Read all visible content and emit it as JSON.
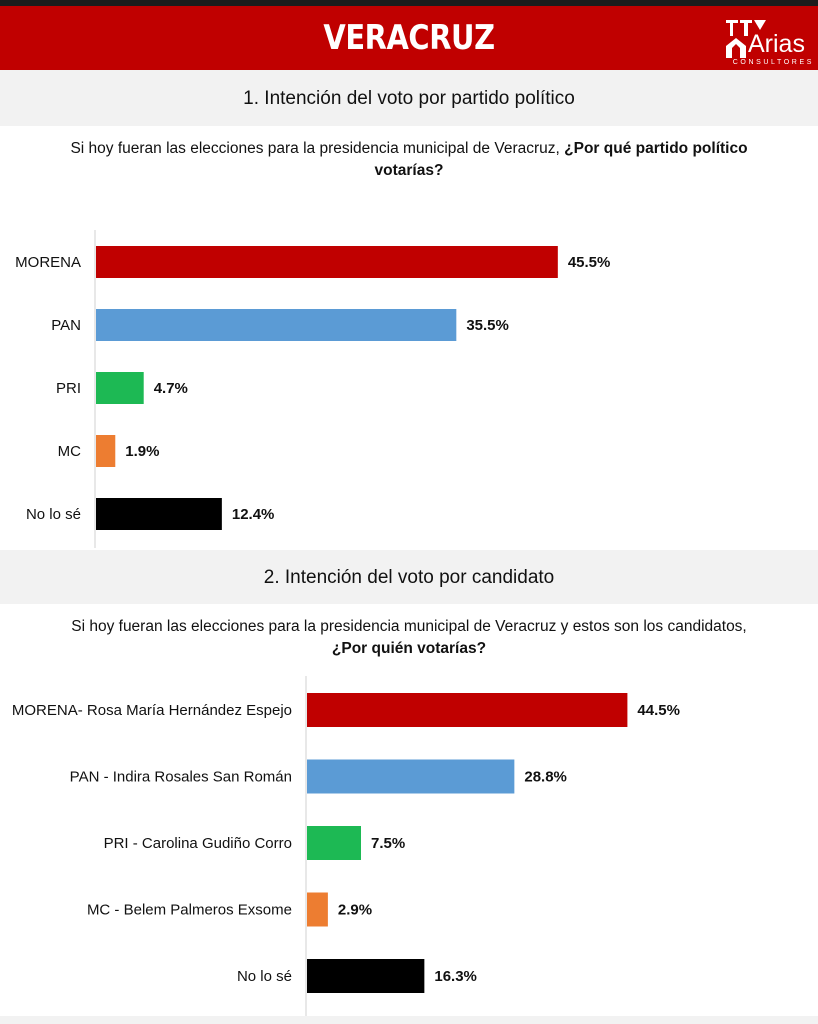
{
  "header": {
    "title": "VERACRUZ",
    "brand_color": "#c00000",
    "logo": {
      "name": "Arias",
      "sub": "CONSULTORES"
    }
  },
  "sections": [
    {
      "heading": "1. Intención del voto por partido político",
      "question_normal": "Si hoy fueran las elecciones para la presidencia municipal de Veracruz, ",
      "question_bold": "¿Por qué partido político votarías?"
    },
    {
      "heading": "2. Intención del voto por candidato",
      "question_normal": "Si hoy fueran las elecciones para la presidencia municipal de Veracruz y estos son los candidatos, ",
      "question_bold": "¿Por quién votarías?"
    }
  ],
  "chart_data": [
    {
      "type": "bar",
      "orientation": "horizontal",
      "categories": [
        "MORENA",
        "PAN",
        "PRI",
        "MC",
        "No lo sé"
      ],
      "values": [
        45.5,
        35.5,
        4.7,
        1.9,
        12.4
      ],
      "value_labels": [
        "45.5%",
        "35.5%",
        "4.7%",
        "1.9%",
        "12.4%"
      ],
      "colors": [
        "#c00000",
        "#5b9bd5",
        "#1db954",
        "#ed7d31",
        "#000000"
      ],
      "xlim": [
        0,
        50
      ],
      "grid": false,
      "legend": "none"
    },
    {
      "type": "bar",
      "orientation": "horizontal",
      "categories": [
        "MORENA- Rosa María Hernández Espejo",
        "PAN - Indira Rosales San Román",
        "PRI - Carolina Gudiño Corro",
        "MC - Belem Palmeros Exsome",
        "No lo sé"
      ],
      "values": [
        44.5,
        28.8,
        7.5,
        2.9,
        16.3
      ],
      "value_labels": [
        "44.5%",
        "28.8%",
        "7.5%",
        "2.9%",
        "16.3%"
      ],
      "colors": [
        "#c00000",
        "#5b9bd5",
        "#1db954",
        "#ed7d31",
        "#000000"
      ],
      "xlim": [
        0,
        50
      ],
      "grid": false,
      "legend": "none"
    }
  ]
}
